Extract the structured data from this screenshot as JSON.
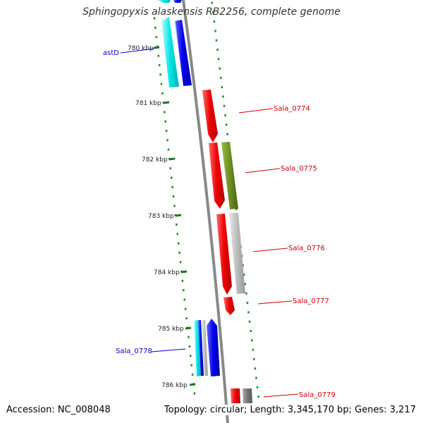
{
  "header": {
    "title": "Sphingopyxis alaskensis RB2256, complete genome"
  },
  "footer": {
    "accession": "Accession: NC_008048",
    "summary": "Topology: circular; Length: 3,345,170 bp; Genes: 3,217"
  },
  "ticks": [
    "780 kbp",
    "781 kbp",
    "782 kbp",
    "783 kbp",
    "784 kbp",
    "785 kbp",
    "786 kbp"
  ],
  "genes": [
    {
      "label": "astD",
      "color": "#0000cc"
    },
    {
      "label": "Sala_0774",
      "color": "#cc0000"
    },
    {
      "label": "Sala_0775",
      "color": "#cc0000"
    },
    {
      "label": "Sala_0776",
      "color": "#cc0000"
    },
    {
      "label": "Sala_0777",
      "color": "#cc0000"
    },
    {
      "label": "Sala_0778",
      "color": "#0000cc"
    },
    {
      "label": "Sala_0779",
      "color": "#cc0000"
    }
  ],
  "colors": {
    "backbone": "#888888",
    "tick_dots": "#228b22",
    "gene_red": "#ee0000",
    "gene_blue": "#0000ee",
    "gene_cyan": "#00e0e0",
    "gene_olive": "#6b8e23",
    "gene_gray": "#bbbbbb"
  }
}
